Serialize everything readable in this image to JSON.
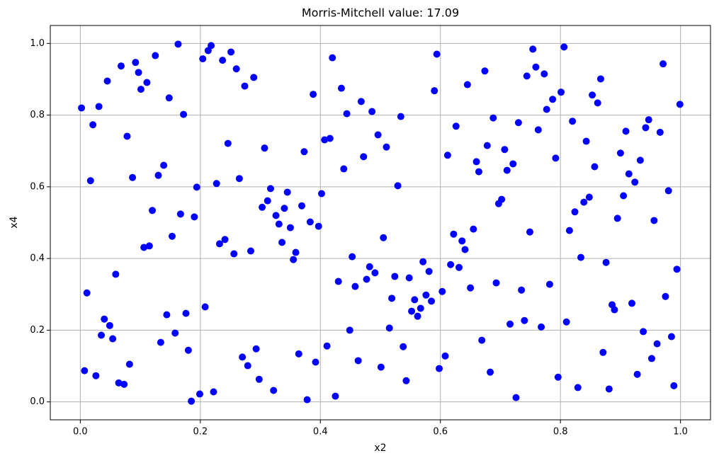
{
  "chart_data": {
    "type": "scatter",
    "title": "Morris-Mitchell value: 17.09",
    "x_label": "x2",
    "y_label": "x4",
    "color": "#0000ff",
    "grid": true,
    "xlim": [
      -0.05,
      1.05
    ],
    "ylim": [
      -0.05,
      1.05
    ],
    "xticks": [
      {
        "value": 0,
        "label": "0.0"
      },
      0.2,
      0.4,
      0.6,
      0.8,
      {
        "value": 1,
        "label": "1.0"
      }
    ],
    "yticks": [
      {
        "value": 0,
        "label": "0.0"
      },
      0.2,
      0.4,
      0.6,
      0.8,
      {
        "value": 1,
        "label": "1.0"
      }
    ],
    "x": [
      0.002,
      0.011,
      0.007,
      0.017,
      0.021,
      0.026,
      0.031,
      0.035,
      0.04,
      0.045,
      0.049,
      0.054,
      0.059,
      0.064,
      0.068,
      0.073,
      0.078,
      0.082,
      0.087,
      0.092,
      0.097,
      0.101,
      0.106,
      0.111,
      0.115,
      0.12,
      0.125,
      0.13,
      0.134,
      0.139,
      0.144,
      0.148,
      0.153,
      0.158,
      0.163,
      0.167,
      0.172,
      0.176,
      0.18,
      0.185,
      0.19,
      0.194,
      0.199,
      0.204,
      0.208,
      0.213,
      0.218,
      0.222,
      0.227,
      0.232,
      0.237,
      0.241,
      0.246,
      0.251,
      0.256,
      0.26,
      0.265,
      0.27,
      0.274,
      0.279,
      0.284,
      0.289,
      0.293,
      0.298,
      0.303,
      0.307,
      0.312,
      0.317,
      0.322,
      0.326,
      0.331,
      0.336,
      0.34,
      0.345,
      0.35,
      0.355,
      0.359,
      0.364,
      0.369,
      0.373,
      0.378,
      0.383,
      0.388,
      0.392,
      0.397,
      0.402,
      0.407,
      0.411,
      0.416,
      0.42,
      0.425,
      0.43,
      0.435,
      0.439,
      0.444,
      0.449,
      0.453,
      0.458,
      0.463,
      0.468,
      0.472,
      0.477,
      0.482,
      0.486,
      0.491,
      0.496,
      0.501,
      0.505,
      0.51,
      0.515,
      0.519,
      0.524,
      0.529,
      0.534,
      0.538,
      0.543,
      0.548,
      0.552,
      0.557,
      0.562,
      0.567,
      0.571,
      0.576,
      0.581,
      0.585,
      0.59,
      0.594,
      0.598,
      0.603,
      0.608,
      0.612,
      0.617,
      0.622,
      0.626,
      0.631,
      0.636,
      0.641,
      0.645,
      0.65,
      0.655,
      0.66,
      0.664,
      0.669,
      0.674,
      0.678,
      0.683,
      0.688,
      0.693,
      0.697,
      0.702,
      0.707,
      0.711,
      0.716,
      0.721,
      0.726,
      0.73,
      0.735,
      0.74,
      0.744,
      0.749,
      0.754,
      0.759,
      0.763,
      0.768,
      0.773,
      0.777,
      0.782,
      0.787,
      0.792,
      0.796,
      0.801,
      0.806,
      0.81,
      0.815,
      0.82,
      0.824,
      0.829,
      0.834,
      0.839,
      0.843,
      0.848,
      0.853,
      0.857,
      0.862,
      0.867,
      0.871,
      0.876,
      0.881,
      0.886,
      0.89,
      0.895,
      0.9,
      0.905,
      0.909,
      0.914,
      0.919,
      0.924,
      0.928,
      0.933,
      0.938,
      0.942,
      0.947,
      0.952,
      0.956,
      0.961,
      0.966,
      0.971,
      0.975,
      0.98,
      0.985,
      0.989,
      0.994,
      0.999
    ],
    "values": [
      0.82,
      0.304,
      0.087,
      0.617,
      0.773,
      0.073,
      0.824,
      0.186,
      0.231,
      0.895,
      0.213,
      0.176,
      0.356,
      0.053,
      0.937,
      0.049,
      0.741,
      0.105,
      0.626,
      0.947,
      0.919,
      0.872,
      0.431,
      0.891,
      0.435,
      0.534,
      0.966,
      0.632,
      0.166,
      0.66,
      0.243,
      0.848,
      0.462,
      0.192,
      0.998,
      0.524,
      0.802,
      0.247,
      0.144,
      0.002,
      0.516,
      0.599,
      0.022,
      0.957,
      0.265,
      0.98,
      0.994,
      0.028,
      0.609,
      0.441,
      0.953,
      0.453,
      0.721,
      0.976,
      0.413,
      0.929,
      0.623,
      0.125,
      0.881,
      0.101,
      0.421,
      0.905,
      0.148,
      0.063,
      0.543,
      0.708,
      0.561,
      0.595,
      0.032,
      0.52,
      0.496,
      0.445,
      0.54,
      0.585,
      0.486,
      0.397,
      0.417,
      0.134,
      0.547,
      0.698,
      0.006,
      0.502,
      0.858,
      0.111,
      0.49,
      0.581,
      0.731,
      0.156,
      0.735,
      0.96,
      0.016,
      0.336,
      0.875,
      0.65,
      0.804,
      0.2,
      0.405,
      0.322,
      0.115,
      0.838,
      0.684,
      0.342,
      0.377,
      0.81,
      0.36,
      0.745,
      0.097,
      0.458,
      0.711,
      0.206,
      0.289,
      0.35,
      0.603,
      0.796,
      0.154,
      0.059,
      0.346,
      0.253,
      0.285,
      0.239,
      0.261,
      0.391,
      0.298,
      0.364,
      0.281,
      0.868,
      0.97,
      0.093,
      0.308,
      0.128,
      0.688,
      0.383,
      0.468,
      0.769,
      0.375,
      0.449,
      0.425,
      0.885,
      0.318,
      0.482,
      0.67,
      0.642,
      0.172,
      0.923,
      0.715,
      0.083,
      0.792,
      0.332,
      0.553,
      0.565,
      0.704,
      0.646,
      0.217,
      0.664,
      0.012,
      0.779,
      0.312,
      0.227,
      0.909,
      0.474,
      0.984,
      0.934,
      0.759,
      0.209,
      0.915,
      0.816,
      0.328,
      0.844,
      0.68,
      0.069,
      0.864,
      0.99,
      0.223,
      0.478,
      0.783,
      0.53,
      0.04,
      0.403,
      0.557,
      0.727,
      0.571,
      0.856,
      0.656,
      0.834,
      0.901,
      0.138,
      0.389,
      0.036,
      0.271,
      0.257,
      0.512,
      0.694,
      0.575,
      0.755,
      0.636,
      0.275,
      0.613,
      0.077,
      0.674,
      0.196,
      0.765,
      0.787,
      0.121,
      0.506,
      0.162,
      0.752,
      0.943,
      0.294,
      0.589,
      0.182,
      0.045,
      0.37,
      0.83
    ]
  }
}
